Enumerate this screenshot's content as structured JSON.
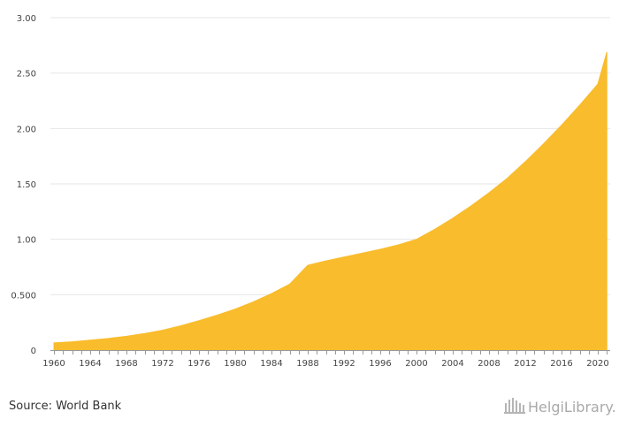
{
  "chart_data": {
    "type": "area",
    "title": "",
    "xlabel": "",
    "ylabel": "",
    "xlim": [
      1960,
      2021
    ],
    "ylim": [
      0,
      3
    ],
    "y_ticks": [
      "0",
      "0.500",
      "1.00",
      "1.50",
      "2.00",
      "2.50",
      "3.00"
    ],
    "y_tick_values": [
      0,
      0.5,
      1,
      1.5,
      2,
      2.5,
      3
    ],
    "x_ticks": [
      "1960",
      "1964",
      "1968",
      "1972",
      "1976",
      "1980",
      "1984",
      "1988",
      "1992",
      "1996",
      "2000",
      "2004",
      "2008",
      "2012",
      "2016",
      "2020"
    ],
    "x_tick_values": [
      1960,
      1964,
      1968,
      1972,
      1976,
      1980,
      1984,
      1988,
      1992,
      1996,
      2000,
      2004,
      2008,
      2012,
      2016,
      2020
    ],
    "grid": true,
    "fill_color": "#f9bc2d",
    "series": [
      {
        "name": "value",
        "x": [
          1960,
          1962,
          1964,
          1966,
          1968,
          1970,
          1972,
          1974,
          1976,
          1978,
          1980,
          1982,
          1984,
          1986,
          1988,
          1990,
          1992,
          1994,
          1996,
          1998,
          2000,
          2002,
          2004,
          2006,
          2008,
          2010,
          2012,
          2014,
          2016,
          2018,
          2020,
          2021
        ],
        "values": [
          0.065,
          0.075,
          0.09,
          0.105,
          0.125,
          0.15,
          0.18,
          0.22,
          0.265,
          0.315,
          0.37,
          0.435,
          0.51,
          0.595,
          0.765,
          0.805,
          0.84,
          0.875,
          0.91,
          0.95,
          1.0,
          1.09,
          1.19,
          1.3,
          1.42,
          1.55,
          1.7,
          1.86,
          2.03,
          2.21,
          2.4,
          2.69
        ]
      }
    ]
  },
  "footer": {
    "source": "Source: World Bank",
    "logo_text": "HelgiLibrary."
  }
}
